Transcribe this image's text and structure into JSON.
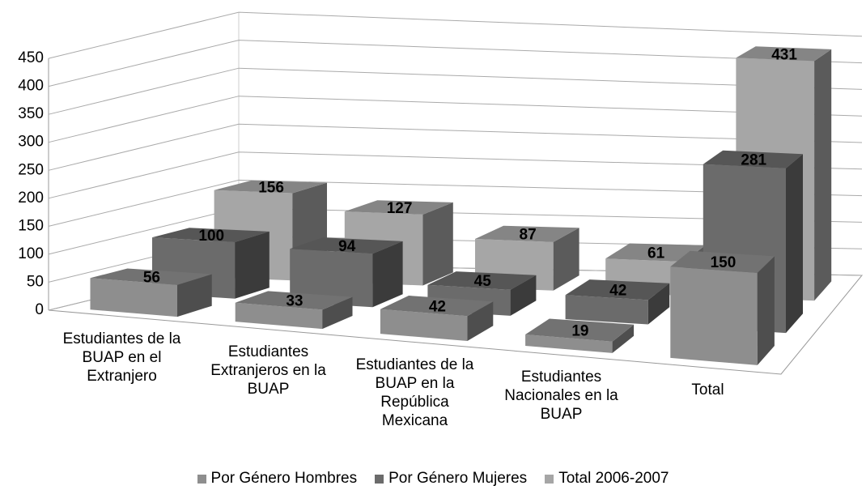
{
  "chart_data": {
    "type": "bar3d",
    "categories": [
      "Estudiantes de la BUAP en el Extranjero",
      "Estudiantes Extranjeros en la BUAP",
      "Estudiantes de la BUAP en la República Mexicana",
      "Estudiantes Nacionales en la BUAP",
      "Total"
    ],
    "series": [
      {
        "name": "Por Género Hombres",
        "color": "#8e8e8e",
        "values": [
          56,
          33,
          42,
          19,
          150
        ]
      },
      {
        "name": "Por Género Mujeres",
        "color": "#6b6b6b",
        "values": [
          100,
          94,
          45,
          42,
          281
        ]
      },
      {
        "name": "Total 2006-2007",
        "color": "#a6a6a6",
        "values": [
          156,
          127,
          87,
          61,
          431
        ]
      }
    ],
    "ylim": [
      0,
      450
    ],
    "yticks": [
      0,
      50,
      100,
      150,
      200,
      250,
      300,
      350,
      400,
      450
    ],
    "grid": true,
    "legend": "bottom"
  }
}
